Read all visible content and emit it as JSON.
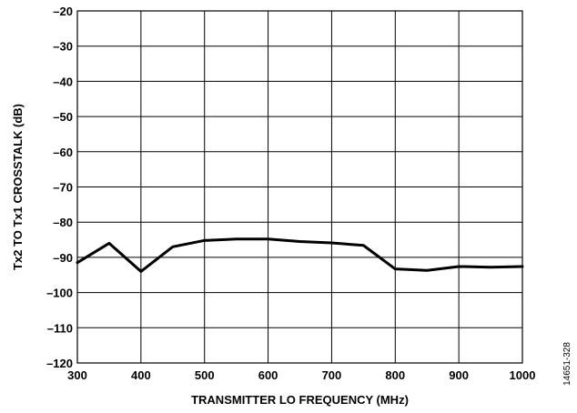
{
  "chart_data": {
    "type": "line",
    "title": "",
    "xlabel": "TRANSMITTER LO FREQUENCY (MHz)",
    "ylabel": "Tx2 TO Tx1 CROSSTALK (dB)",
    "xlim": [
      300,
      1000
    ],
    "ylim": [
      -120,
      -20
    ],
    "x_ticks": [
      300,
      400,
      500,
      600,
      700,
      800,
      900,
      1000
    ],
    "y_ticks": [
      -20,
      -30,
      -40,
      -50,
      -60,
      -70,
      -80,
      -90,
      -100,
      -110,
      -120
    ],
    "x_tick_labels": [
      "300",
      "400",
      "500",
      "600",
      "700",
      "800",
      "900",
      "1000"
    ],
    "y_tick_labels": [
      "–20",
      "–30",
      "–40",
      "–50",
      "–60",
      "–70",
      "–80",
      "–90",
      "–100",
      "–110",
      "–120"
    ],
    "grid": true,
    "series": [
      {
        "color": "#000000",
        "x": [
          300,
          350,
          400,
          450,
          500,
          550,
          600,
          650,
          700,
          750,
          800,
          850,
          900,
          950,
          1000
        ],
        "y": [
          -91.5,
          -86,
          -94,
          -87,
          -85.2,
          -84.8,
          -84.8,
          -85.5,
          -85.9,
          -86.6,
          -93.3,
          -93.7,
          -92.6,
          -92.8,
          -92.6
        ]
      }
    ]
  },
  "figure_id": "14651-328"
}
